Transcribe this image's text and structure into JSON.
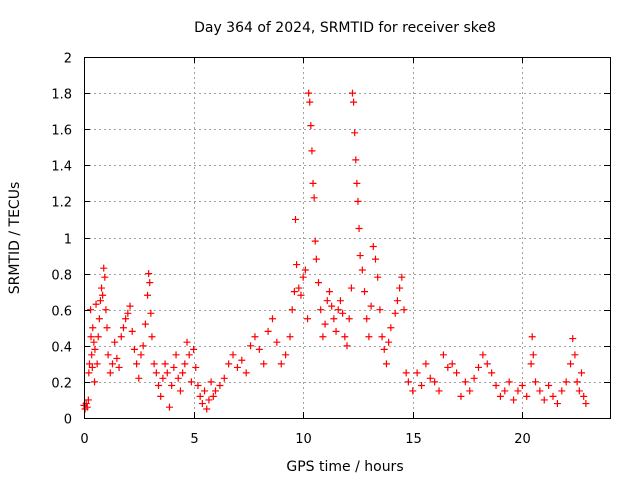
{
  "chart_data": {
    "type": "scatter",
    "title": "Day 364 of 2024, SRMTID for receiver ske8",
    "xlabel": "GPS time / hours",
    "ylabel": "SRMTID / TECUs",
    "xlim": [
      0,
      24
    ],
    "ylim": [
      0,
      2
    ],
    "xticks": [
      0,
      5,
      10,
      15,
      20
    ],
    "yticks": [
      0,
      0.2,
      0.4,
      0.6,
      0.8,
      1,
      1.2,
      1.4,
      1.6,
      1.8,
      2
    ],
    "x_tick_labels": [
      "0",
      "5",
      "10",
      "15",
      "20"
    ],
    "y_tick_labels": [
      "0",
      "0.2",
      "0.4",
      "0.6",
      "0.8",
      "1",
      "1.2",
      "1.4",
      "1.6",
      "1.8",
      "2"
    ],
    "grid": true,
    "marker": "+",
    "color": "#ff0000",
    "series": [
      {
        "name": "SRMTID",
        "points": [
          [
            0.0,
            0.07
          ],
          [
            0.05,
            0.05
          ],
          [
            0.1,
            0.08
          ],
          [
            0.15,
            0.06
          ],
          [
            0.2,
            0.1
          ],
          [
            0.22,
            0.25
          ],
          [
            0.25,
            0.3
          ],
          [
            0.3,
            0.6
          ],
          [
            0.32,
            0.45
          ],
          [
            0.35,
            0.35
          ],
          [
            0.38,
            0.28
          ],
          [
            0.4,
            0.5
          ],
          [
            0.45,
            0.42
          ],
          [
            0.48,
            0.2
          ],
          [
            0.5,
            0.38
          ],
          [
            0.55,
            0.63
          ],
          [
            0.6,
            0.3
          ],
          [
            0.65,
            0.45
          ],
          [
            0.7,
            0.55
          ],
          [
            0.75,
            0.65
          ],
          [
            0.8,
            0.72
          ],
          [
            0.85,
            0.68
          ],
          [
            0.9,
            0.83
          ],
          [
            0.95,
            0.78
          ],
          [
            1.0,
            0.6
          ],
          [
            1.05,
            0.5
          ],
          [
            1.1,
            0.35
          ],
          [
            1.2,
            0.25
          ],
          [
            1.3,
            0.3
          ],
          [
            1.4,
            0.42
          ],
          [
            1.5,
            0.33
          ],
          [
            1.6,
            0.28
          ],
          [
            1.7,
            0.45
          ],
          [
            1.8,
            0.5
          ],
          [
            1.9,
            0.55
          ],
          [
            2.0,
            0.58
          ],
          [
            2.1,
            0.62
          ],
          [
            2.2,
            0.48
          ],
          [
            2.3,
            0.38
          ],
          [
            2.4,
            0.3
          ],
          [
            2.5,
            0.22
          ],
          [
            2.6,
            0.35
          ],
          [
            2.7,
            0.4
          ],
          [
            2.8,
            0.52
          ],
          [
            2.9,
            0.68
          ],
          [
            2.95,
            0.8
          ],
          [
            3.0,
            0.75
          ],
          [
            3.05,
            0.58
          ],
          [
            3.1,
            0.45
          ],
          [
            3.2,
            0.3
          ],
          [
            3.3,
            0.25
          ],
          [
            3.4,
            0.18
          ],
          [
            3.5,
            0.12
          ],
          [
            3.6,
            0.22
          ],
          [
            3.7,
            0.3
          ],
          [
            3.8,
            0.25
          ],
          [
            3.9,
            0.06
          ],
          [
            4.0,
            0.18
          ],
          [
            4.1,
            0.28
          ],
          [
            4.2,
            0.35
          ],
          [
            4.3,
            0.22
          ],
          [
            4.4,
            0.15
          ],
          [
            4.5,
            0.25
          ],
          [
            4.6,
            0.3
          ],
          [
            4.7,
            0.42
          ],
          [
            4.8,
            0.35
          ],
          [
            4.9,
            0.2
          ],
          [
            5.0,
            0.38
          ],
          [
            5.1,
            0.28
          ],
          [
            5.2,
            0.18
          ],
          [
            5.3,
            0.12
          ],
          [
            5.4,
            0.08
          ],
          [
            5.5,
            0.15
          ],
          [
            5.6,
            0.05
          ],
          [
            5.7,
            0.1
          ],
          [
            5.8,
            0.2
          ],
          [
            5.9,
            0.12
          ],
          [
            6.0,
            0.15
          ],
          [
            6.2,
            0.18
          ],
          [
            6.4,
            0.22
          ],
          [
            6.6,
            0.3
          ],
          [
            6.8,
            0.35
          ],
          [
            7.0,
            0.28
          ],
          [
            7.2,
            0.32
          ],
          [
            7.4,
            0.25
          ],
          [
            7.6,
            0.4
          ],
          [
            7.8,
            0.45
          ],
          [
            8.0,
            0.38
          ],
          [
            8.2,
            0.3
          ],
          [
            8.4,
            0.48
          ],
          [
            8.6,
            0.55
          ],
          [
            8.8,
            0.42
          ],
          [
            9.0,
            0.3
          ],
          [
            9.2,
            0.35
          ],
          [
            9.4,
            0.45
          ],
          [
            9.5,
            0.6
          ],
          [
            9.6,
            0.7
          ],
          [
            9.65,
            1.1
          ],
          [
            9.7,
            0.85
          ],
          [
            9.8,
            0.72
          ],
          [
            9.9,
            0.68
          ],
          [
            10.0,
            0.78
          ],
          [
            10.1,
            0.82
          ],
          [
            10.2,
            0.55
          ],
          [
            10.25,
            1.8
          ],
          [
            10.3,
            1.75
          ],
          [
            10.35,
            1.62
          ],
          [
            10.4,
            1.48
          ],
          [
            10.45,
            1.3
          ],
          [
            10.5,
            1.22
          ],
          [
            10.55,
            0.98
          ],
          [
            10.6,
            0.88
          ],
          [
            10.7,
            0.75
          ],
          [
            10.8,
            0.6
          ],
          [
            10.9,
            0.45
          ],
          [
            11.0,
            0.52
          ],
          [
            11.1,
            0.65
          ],
          [
            11.2,
            0.7
          ],
          [
            11.3,
            0.62
          ],
          [
            11.4,
            0.55
          ],
          [
            11.5,
            0.48
          ],
          [
            11.6,
            0.6
          ],
          [
            11.7,
            0.65
          ],
          [
            11.8,
            0.58
          ],
          [
            11.9,
            0.45
          ],
          [
            12.0,
            0.4
          ],
          [
            12.1,
            0.55
          ],
          [
            12.2,
            0.72
          ],
          [
            12.25,
            1.8
          ],
          [
            12.3,
            1.75
          ],
          [
            12.35,
            1.58
          ],
          [
            12.4,
            1.43
          ],
          [
            12.45,
            1.3
          ],
          [
            12.5,
            1.2
          ],
          [
            12.55,
            1.05
          ],
          [
            12.6,
            0.9
          ],
          [
            12.7,
            0.82
          ],
          [
            12.8,
            0.7
          ],
          [
            12.9,
            0.55
          ],
          [
            13.0,
            0.45
          ],
          [
            13.1,
            0.62
          ],
          [
            13.2,
            0.95
          ],
          [
            13.3,
            0.88
          ],
          [
            13.4,
            0.78
          ],
          [
            13.5,
            0.6
          ],
          [
            13.6,
            0.45
          ],
          [
            13.7,
            0.38
          ],
          [
            13.8,
            0.3
          ],
          [
            13.9,
            0.42
          ],
          [
            14.0,
            0.5
          ],
          [
            14.2,
            0.58
          ],
          [
            14.3,
            0.65
          ],
          [
            14.4,
            0.72
          ],
          [
            14.5,
            0.78
          ],
          [
            14.6,
            0.6
          ],
          [
            14.7,
            0.25
          ],
          [
            14.8,
            0.2
          ],
          [
            15.0,
            0.15
          ],
          [
            15.2,
            0.25
          ],
          [
            15.4,
            0.18
          ],
          [
            15.6,
            0.3
          ],
          [
            15.8,
            0.22
          ],
          [
            16.0,
            0.2
          ],
          [
            16.2,
            0.15
          ],
          [
            16.4,
            0.35
          ],
          [
            16.6,
            0.28
          ],
          [
            16.8,
            0.3
          ],
          [
            17.0,
            0.25
          ],
          [
            17.2,
            0.12
          ],
          [
            17.4,
            0.2
          ],
          [
            17.6,
            0.15
          ],
          [
            17.8,
            0.22
          ],
          [
            18.0,
            0.28
          ],
          [
            18.2,
            0.35
          ],
          [
            18.4,
            0.3
          ],
          [
            18.6,
            0.25
          ],
          [
            18.8,
            0.18
          ],
          [
            19.0,
            0.12
          ],
          [
            19.2,
            0.15
          ],
          [
            19.4,
            0.2
          ],
          [
            19.6,
            0.1
          ],
          [
            19.8,
            0.15
          ],
          [
            20.0,
            0.18
          ],
          [
            20.2,
            0.12
          ],
          [
            20.4,
            0.3
          ],
          [
            20.45,
            0.45
          ],
          [
            20.5,
            0.35
          ],
          [
            20.6,
            0.2
          ],
          [
            20.8,
            0.15
          ],
          [
            21.0,
            0.1
          ],
          [
            21.2,
            0.18
          ],
          [
            21.4,
            0.12
          ],
          [
            21.6,
            0.08
          ],
          [
            21.8,
            0.15
          ],
          [
            22.0,
            0.2
          ],
          [
            22.2,
            0.3
          ],
          [
            22.3,
            0.44
          ],
          [
            22.4,
            0.35
          ],
          [
            22.5,
            0.2
          ],
          [
            22.6,
            0.15
          ],
          [
            22.7,
            0.25
          ],
          [
            22.8,
            0.12
          ],
          [
            22.9,
            0.08
          ]
        ]
      }
    ]
  }
}
